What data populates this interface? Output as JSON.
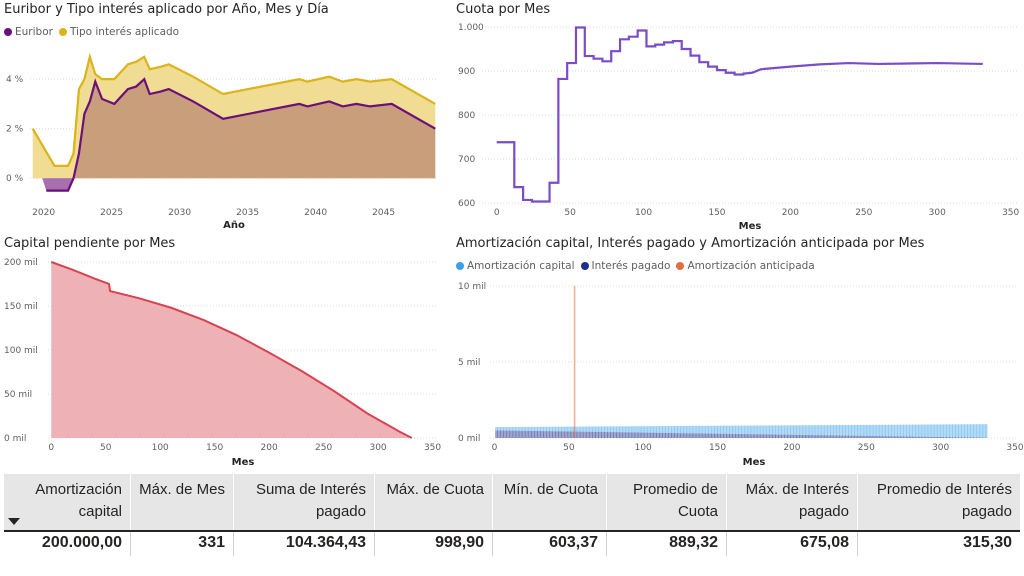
{
  "colors": {
    "euribor": "#6b0f7a",
    "tipo": "#d9b41a",
    "tipo_fill": "#f0dc93",
    "euribor_fill": "#c99f7b",
    "euribor_neg_fill": "#a66fb0",
    "cuota_line": "#7a4cc6",
    "capital_line": "#d9434f",
    "capital_fill": "#eeb1b6",
    "amort_capital": "#3aa0e8",
    "interes": "#1c2d8c",
    "anticipada": "#e07040"
  },
  "chart_data": [
    {
      "id": "euribor_tipo",
      "type": "area",
      "title": "Euribor y Tipo interés aplicado por Año, Mes y Día",
      "xlabel": "Año",
      "ylabel": "",
      "xlim": [
        2019,
        2049
      ],
      "ylim": [
        -1.0,
        5.5
      ],
      "xticks": [
        2020,
        2025,
        2030,
        2035,
        2040,
        2045
      ],
      "yticks": [
        0,
        2,
        4
      ],
      "ytick_labels": [
        "0 %",
        "2 %",
        "4 %"
      ],
      "grid": true,
      "legend": "top-left",
      "series": [
        {
          "name": "Euribor",
          "x": [
            2020.2,
            2020.8,
            2021.2,
            2021.8,
            2022.2,
            2022.6,
            2023.0,
            2023.4,
            2023.8,
            2024.3,
            2025.2,
            2026.2,
            2026.8,
            2027.4,
            2027.8,
            2028.6,
            2029.2,
            2031.0,
            2033.2,
            2036.0,
            2038.8,
            2039.4,
            2041.0,
            2042.0,
            2043.0,
            2044.0,
            2045.6,
            2048.8
          ],
          "values": [
            -0.5,
            -0.5,
            -0.5,
            -0.5,
            0.0,
            1.0,
            2.6,
            3.1,
            3.9,
            3.2,
            3.0,
            3.6,
            3.7,
            4.0,
            3.4,
            3.5,
            3.6,
            3.1,
            2.4,
            2.7,
            3.0,
            2.9,
            3.1,
            2.9,
            3.0,
            2.9,
            3.0,
            2.0
          ]
        },
        {
          "name": "Tipo interés aplicado",
          "x": [
            2019.2,
            2020.8,
            2021.2,
            2021.8,
            2022.2,
            2022.6,
            2023.0,
            2023.4,
            2023.8,
            2024.3,
            2025.2,
            2026.2,
            2026.8,
            2027.4,
            2027.8,
            2028.6,
            2029.2,
            2031.0,
            2033.2,
            2036.0,
            2038.8,
            2039.4,
            2041.0,
            2042.0,
            2043.0,
            2044.0,
            2045.6,
            2048.8
          ],
          "values": [
            2.0,
            0.5,
            0.5,
            0.5,
            1.0,
            3.6,
            4.0,
            4.9,
            4.2,
            4.0,
            4.0,
            4.6,
            4.7,
            4.9,
            4.4,
            4.5,
            4.6,
            4.1,
            3.4,
            3.7,
            4.0,
            3.9,
            4.1,
            3.9,
            4.0,
            3.9,
            4.0,
            3.0
          ]
        }
      ]
    },
    {
      "id": "cuota",
      "type": "line",
      "title": "Cuota por Mes",
      "xlabel": "Mes",
      "ylabel": "",
      "xlim": [
        -10,
        355
      ],
      "ylim": [
        600,
        1000
      ],
      "xticks": [
        0,
        50,
        100,
        150,
        200,
        250,
        300,
        350
      ],
      "yticks": [
        600,
        700,
        800,
        900,
        1000
      ],
      "ytick_labels": [
        "600",
        "700",
        "800",
        "900",
        "1.000"
      ],
      "grid": true,
      "series": [
        {
          "name": "",
          "x": [
            0,
            12,
            12,
            18,
            18,
            24,
            24,
            36,
            36,
            42,
            42,
            48,
            48,
            54,
            54,
            60,
            60,
            66,
            66,
            72,
            72,
            78,
            78,
            84,
            84,
            90,
            90,
            96,
            96,
            102,
            102,
            108,
            108,
            114,
            114,
            120,
            120,
            126,
            126,
            132,
            132,
            138,
            138,
            144,
            144,
            150,
            150,
            156,
            156,
            162,
            162,
            168,
            168,
            174,
            180,
            200,
            220,
            240,
            260,
            280,
            300,
            331
          ],
          "values": [
            738,
            738,
            636,
            636,
            607,
            607,
            603.37,
            603.37,
            646,
            646,
            882,
            882,
            918,
            918,
            998.9,
            998.9,
            934,
            934,
            928,
            928,
            922,
            922,
            945,
            945,
            972,
            972,
            978,
            978,
            992,
            992,
            956,
            956,
            960,
            960,
            965,
            965,
            968,
            968,
            950,
            950,
            935,
            935,
            920,
            920,
            910,
            910,
            902,
            902,
            896,
            896,
            892,
            892,
            894,
            896,
            904,
            910,
            915,
            918,
            916,
            917,
            918,
            916
          ]
        }
      ]
    },
    {
      "id": "capital",
      "type": "area",
      "title": "Capital pendiente por Mes",
      "xlabel": "Mes",
      "ylabel": "",
      "xlim": [
        -3,
        355
      ],
      "ylim": [
        0,
        200000
      ],
      "xticks": [
        0,
        50,
        100,
        150,
        200,
        250,
        300,
        350
      ],
      "yticks": [
        0,
        50000,
        100000,
        150000,
        200000
      ],
      "ytick_labels": [
        "0 mil",
        "50 mil",
        "100 mil",
        "150 mil",
        "200 mil"
      ],
      "grid": true,
      "series": [
        {
          "name": "",
          "x": [
            0,
            20,
            40,
            53,
            54,
            80,
            110,
            140,
            170,
            200,
            230,
            260,
            290,
            310,
            320,
            331
          ],
          "values": [
            200000,
            191000,
            181000,
            175000,
            167000,
            159000,
            148000,
            134000,
            117000,
            97000,
            76000,
            53000,
            28000,
            14000,
            7000,
            0
          ]
        }
      ]
    },
    {
      "id": "amortizacion",
      "type": "bar",
      "title": "Amortización capital, Interés pagado y Amortización anticipada por Mes",
      "xlabel": "Mes",
      "ylabel": "",
      "xlim": [
        -3,
        352
      ],
      "ylim": [
        0,
        10000
      ],
      "xticks": [
        0,
        50,
        100,
        150,
        200,
        250,
        300,
        350
      ],
      "yticks": [
        0,
        5000,
        10000
      ],
      "ytick_labels": [
        "0 mil",
        "5 mil",
        "10 mil"
      ],
      "grid": true,
      "legend": "top-left",
      "series": [
        {
          "name": "Amortización capital",
          "x_range": [
            1,
            331
          ],
          "start": 220,
          "end": 890
        },
        {
          "name": "Interés pagado",
          "x_range": [
            1,
            331
          ],
          "start": 500,
          "end": 20
        },
        {
          "name": "Amortización anticipada",
          "x": [
            54
          ],
          "values": [
            10000
          ]
        }
      ]
    }
  ],
  "table": {
    "headers": [
      [
        "Amortización",
        "capital"
      ],
      [
        "Máx. de Mes",
        ""
      ],
      [
        "Suma de Interés",
        "pagado"
      ],
      [
        "Máx. de Cuota",
        ""
      ],
      [
        "Mín. de Cuota",
        ""
      ],
      [
        "Promedio de",
        "Cuota"
      ],
      [
        "Máx. de Interés",
        "pagado"
      ],
      [
        "Promedio de Interés",
        "pagado"
      ]
    ],
    "values": [
      "200.000,00",
      "331",
      "104.364,43",
      "998,90",
      "603,37",
      "889,32",
      "675,08",
      "315,30"
    ]
  }
}
